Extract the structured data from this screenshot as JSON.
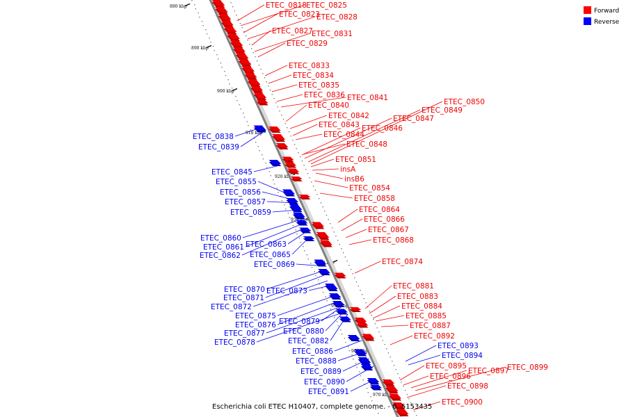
{
  "caption": "Escherichia coli ETEC H10407, complete genome. - 0..5153435",
  "legend": [
    {
      "label": "Forward",
      "color": "#ff0000"
    },
    {
      "label": "Reverse",
      "color": "#0000ff"
    }
  ],
  "colors": {
    "forward": "#ee0000",
    "reverse": "#0000ee",
    "backbone": "#808080"
  },
  "ticks": [
    "880 kbp",
    "890 kbp",
    "900 kbp",
    "910 kbp",
    "920 kbp",
    "930 kbp",
    "940 kbp",
    "950 kbp",
    "960 kbp",
    "970 kbp"
  ],
  "forward_labels": [
    "ETEC_0818",
    "ETEC_0825",
    "ETEC_0823",
    "ETEC_0828",
    "ETEC_0827",
    "ETEC_0831",
    "ETEC_0829",
    "ETEC_0833",
    "ETEC_0834",
    "ETEC_0835",
    "ETEC_0836",
    "ETEC_0841",
    "ETEC_0840",
    "ETEC_0842",
    "ETEC_0843",
    "ETEC_0844",
    "ETEC_0846",
    "ETEC_0847",
    "ETEC_0849",
    "ETEC_0850",
    "ETEC_0848",
    "ETEC_0851",
    "insA",
    "insB6",
    "ETEC_0854",
    "ETEC_0858",
    "ETEC_0864",
    "ETEC_0866",
    "ETEC_0867",
    "ETEC_0868",
    "ETEC_0874",
    "ETEC_0881",
    "ETEC_0883",
    "ETEC_0884",
    "ETEC_0885",
    "ETEC_0887",
    "ETEC_0892",
    "ETEC_0895",
    "ETEC_0896",
    "ETEC_0897",
    "ETEC_0899",
    "ETEC_0898",
    "ETEC_0900"
  ],
  "reverse_labels": [
    "ETEC_0838",
    "ETEC_0839",
    "ETEC_0845",
    "ETEC_0855",
    "ETEC_0856",
    "ETEC_0857",
    "ETEC_0859",
    "ETEC_0860",
    "ETEC_0861",
    "ETEC_0862",
    "ETEC_0863",
    "ETEC_0865",
    "ETEC_0869",
    "ETEC_0870",
    "ETEC_0871",
    "ETEC_0872",
    "ETEC_0873",
    "ETEC_0875",
    "ETEC_0876",
    "ETEC_0877",
    "ETEC_0878",
    "ETEC_0879",
    "ETEC_0880",
    "ETEC_0882",
    "ETEC_0886",
    "ETEC_0888",
    "ETEC_0889",
    "ETEC_0890",
    "ETEC_0891",
    "ETEC_0893",
    "ETEC_0894"
  ]
}
